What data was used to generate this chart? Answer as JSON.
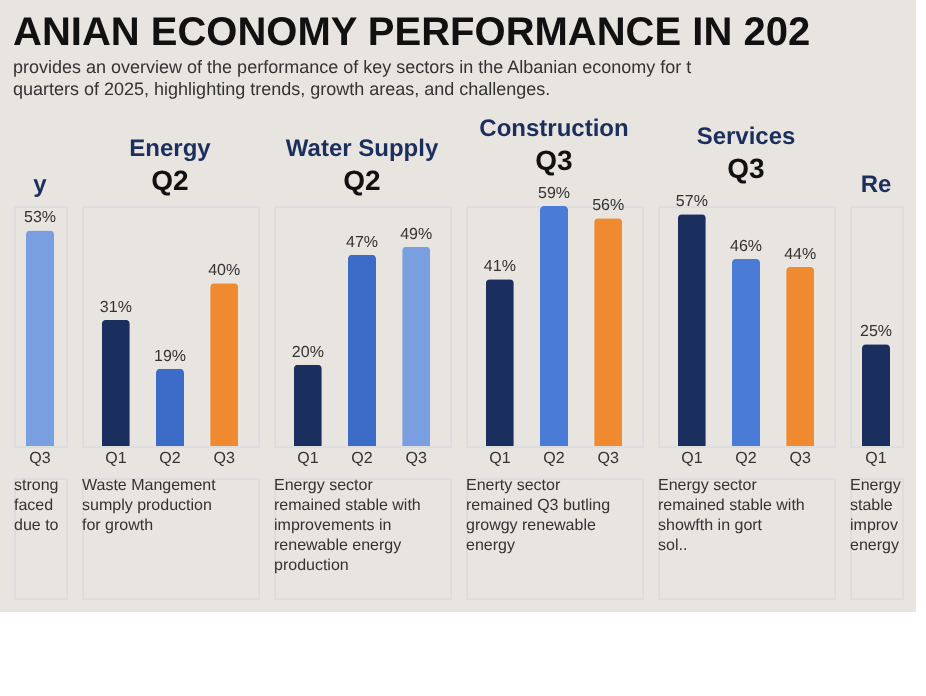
{
  "chart_data": [
    {
      "type": "other",
      "title": "ANIAN ECONOMY PERFORMANCE IN 202",
      "subtitle": "provides an overview of the performance of key sectors in the Albanian economy for t quarters of 2025, highlighting trends, growth areas, and challenges."
    },
    {
      "type": "bar",
      "title": "y",
      "categories": [
        "Q3"
      ],
      "values": [
        53
      ],
      "colors": [
        "#7a9fe0"
      ],
      "value_labels": [
        "53%"
      ],
      "annotations": [
        "strong faced due to"
      ]
    },
    {
      "type": "bar",
      "title": "Energy",
      "subtitle": "Q2",
      "categories": [
        "Q1",
        "Q2",
        "Q3"
      ],
      "values": [
        31,
        19,
        40
      ],
      "colors": [
        "#1b2f5e",
        "#3d6cc8",
        "#f08a30"
      ],
      "value_labels": [
        "31%",
        "19%",
        "40%"
      ],
      "annotations": [
        "Waste Mangement sumply production for growth"
      ]
    },
    {
      "type": "bar",
      "title": "Water Supply",
      "subtitle": "Q2",
      "categories": [
        "Q1",
        "Q2",
        "Q3"
      ],
      "values": [
        20,
        47,
        49
      ],
      "colors": [
        "#1b2f5e",
        "#3d6cc8",
        "#7a9fe0"
      ],
      "value_labels": [
        "20%",
        "47%",
        "49%"
      ],
      "annotations": [
        "Energy sector remained stable with improvements in renewable energy production"
      ]
    },
    {
      "type": "bar",
      "title": "Construction",
      "subtitle": "Q3",
      "categories": [
        "Q1",
        "Q2",
        "Q3"
      ],
      "values": [
        41,
        59,
        56
      ],
      "colors": [
        "#1b2f5e",
        "#4a7bd6",
        "#f08a30"
      ],
      "value_labels": [
        "41%",
        "59%",
        "56%"
      ],
      "annotations": [
        "Enerty sector remained Q3 butling growgy renewable energy"
      ]
    },
    {
      "type": "bar",
      "title": "Services",
      "subtitle": "Q3",
      "categories": [
        "Q1",
        "Q2",
        "Q3"
      ],
      "values": [
        57,
        46,
        44
      ],
      "colors": [
        "#1b2f5e",
        "#4a7bd6",
        "#f08a30"
      ],
      "value_labels": [
        "57%",
        "46%",
        "44%"
      ],
      "annotations": [
        "Energy sector remained stable with showfth in gort sol.."
      ]
    },
    {
      "type": "bar",
      "title": "Re",
      "categories": [
        "Q1"
      ],
      "values": [
        25
      ],
      "colors": [
        "#1b2f5e"
      ],
      "value_labels": [
        "25%"
      ],
      "annotations": [
        "Energy stable improv energy"
      ]
    }
  ]
}
